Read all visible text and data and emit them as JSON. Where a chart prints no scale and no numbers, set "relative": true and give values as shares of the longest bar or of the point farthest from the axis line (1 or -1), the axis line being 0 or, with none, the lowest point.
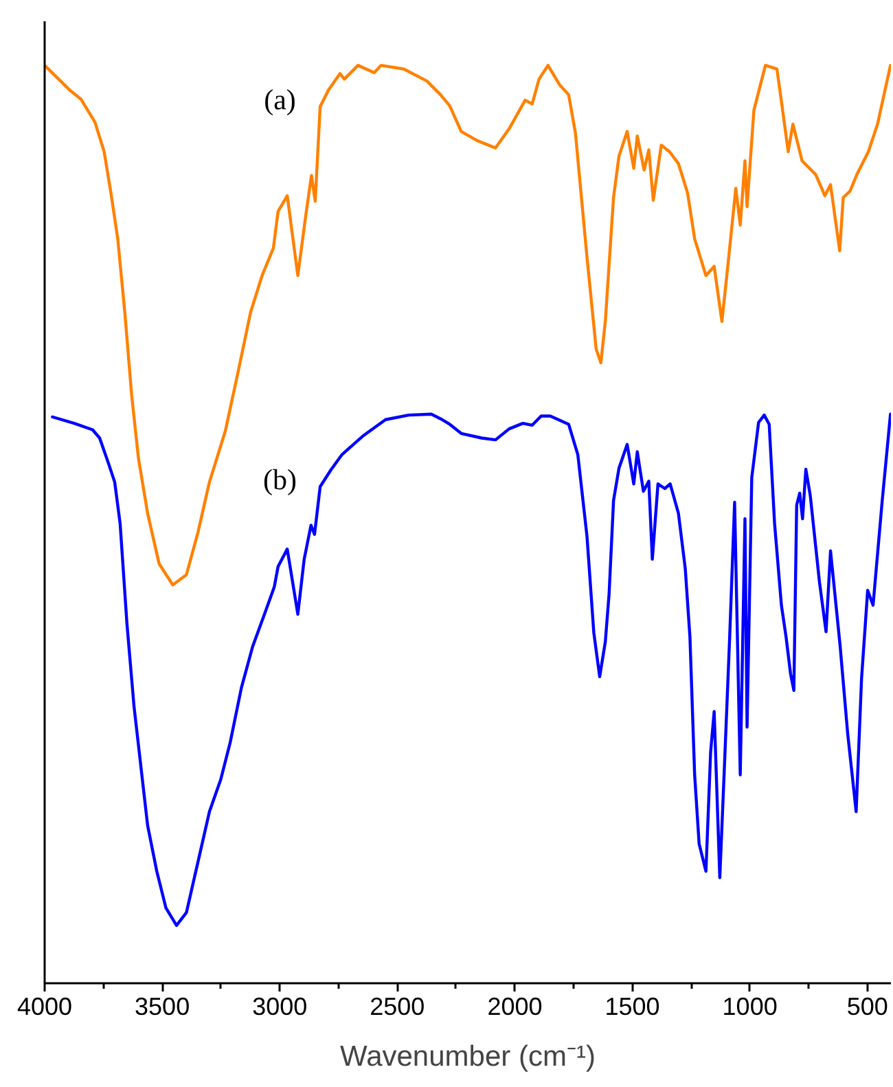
{
  "chart_data": {
    "type": "line",
    "xlabel": "Wavenumber (cm⁻¹)",
    "relative": true,
    "tick_labels": "x",
    "xlim": [
      4000,
      400
    ],
    "xticks": [
      4000,
      {
        "value": 3750,
        "label": null
      },
      3500,
      {
        "value": 3250,
        "label": null
      },
      3000,
      {
        "value": 2750,
        "label": null
      },
      2500,
      {
        "value": 2250,
        "label": null
      },
      2000,
      {
        "value": 1750,
        "label": null
      },
      1500,
      {
        "value": 1250,
        "label": null
      },
      1000,
      {
        "value": 750,
        "label": null
      },
      500
    ],
    "series": [
      {
        "name": "(a)",
        "color": "#ff8000",
        "x": [
          4000,
          3893,
          3845,
          3786,
          3747,
          3718,
          3689,
          3659,
          3630,
          3601,
          3562,
          3513,
          3455,
          3397,
          3348,
          3299,
          3231,
          3173,
          3124,
          3075,
          3027,
          3007,
          2968,
          2923,
          2890,
          2865,
          2849,
          2828,
          2793,
          2744,
          2725,
          2667,
          2598,
          2569,
          2472,
          2374,
          2316,
          2277,
          2228,
          2160,
          2082,
          2024,
          1956,
          1926,
          1897,
          1859,
          1810,
          1771,
          1742,
          1693,
          1654,
          1634,
          1615,
          1580,
          1557,
          1522,
          1494,
          1479,
          1450,
          1430,
          1411,
          1377,
          1342,
          1304,
          1265,
          1235,
          1187,
          1152,
          1119,
          1090,
          1060,
          1041,
          1021,
          1012,
          983,
          934,
          885,
          866,
          837,
          817,
          778,
          720,
          681,
          657,
          618,
          603,
          574,
          545,
          496,
          457,
          402
        ],
        "values": [
          1.0,
          0.973,
          0.963,
          0.938,
          0.906,
          0.861,
          0.811,
          0.731,
          0.641,
          0.572,
          0.512,
          0.457,
          0.434,
          0.445,
          0.491,
          0.546,
          0.602,
          0.671,
          0.731,
          0.771,
          0.801,
          0.841,
          0.858,
          0.771,
          0.835,
          0.88,
          0.852,
          0.955,
          0.973,
          0.991,
          0.985,
          1.0,
          0.992,
          1.0,
          0.996,
          0.983,
          0.968,
          0.956,
          0.928,
          0.918,
          0.91,
          0.931,
          0.962,
          0.958,
          0.985,
          1.0,
          0.979,
          0.968,
          0.926,
          0.791,
          0.691,
          0.676,
          0.721,
          0.856,
          0.901,
          0.928,
          0.888,
          0.923,
          0.886,
          0.908,
          0.853,
          0.913,
          0.906,
          0.893,
          0.861,
          0.811,
          0.771,
          0.781,
          0.721,
          0.791,
          0.866,
          0.826,
          0.896,
          0.846,
          0.951,
          1.0,
          0.996,
          0.961,
          0.906,
          0.936,
          0.896,
          0.881,
          0.858,
          0.87,
          0.798,
          0.856,
          0.863,
          0.881,
          0.906,
          0.936,
          1.0
        ]
      },
      {
        "name": "(b)",
        "color": "#0000ff",
        "x": [
          3967,
          3874,
          3796,
          3766,
          3728,
          3702,
          3679,
          3650,
          3620,
          3591,
          3562,
          3523,
          3484,
          3439,
          3397,
          3348,
          3299,
          3251,
          3211,
          3163,
          3115,
          3065,
          3023,
          3007,
          2968,
          2923,
          2896,
          2867,
          2852,
          2828,
          2783,
          2735,
          2647,
          2550,
          2452,
          2355,
          2316,
          2277,
          2228,
          2141,
          2082,
          2024,
          1966,
          1926,
          1888,
          1849,
          1771,
          1732,
          1693,
          1664,
          1639,
          1615,
          1599,
          1580,
          1557,
          1522,
          1494,
          1479,
          1453,
          1430,
          1415,
          1391,
          1362,
          1339,
          1304,
          1275,
          1255,
          1235,
          1216,
          1187,
          1167,
          1152,
          1128,
          1109,
          1086,
          1065,
          1041,
          1021,
          1012,
          992,
          963,
          939,
          918,
          895,
          866,
          846,
          827,
          813,
          801,
          788,
          776,
          762,
          743,
          704,
          676,
          657,
          616,
          584,
          548,
          525,
          499,
          476,
          437,
          402
        ],
        "values": [
          0.617,
          0.61,
          0.603,
          0.594,
          0.566,
          0.546,
          0.501,
          0.392,
          0.302,
          0.237,
          0.172,
          0.122,
          0.082,
          0.063,
          0.077,
          0.132,
          0.187,
          0.222,
          0.262,
          0.322,
          0.367,
          0.402,
          0.432,
          0.454,
          0.473,
          0.402,
          0.462,
          0.499,
          0.489,
          0.541,
          0.559,
          0.576,
          0.596,
          0.614,
          0.619,
          0.62,
          0.615,
          0.609,
          0.599,
          0.594,
          0.592,
          0.604,
          0.61,
          0.608,
          0.618,
          0.618,
          0.609,
          0.576,
          0.487,
          0.382,
          0.334,
          0.372,
          0.424,
          0.526,
          0.561,
          0.587,
          0.544,
          0.579,
          0.536,
          0.547,
          0.462,
          0.544,
          0.539,
          0.544,
          0.512,
          0.452,
          0.377,
          0.227,
          0.152,
          0.122,
          0.252,
          0.296,
          0.115,
          0.232,
          0.377,
          0.524,
          0.227,
          0.506,
          0.279,
          0.551,
          0.611,
          0.619,
          0.609,
          0.501,
          0.412,
          0.377,
          0.337,
          0.319,
          0.521,
          0.534,
          0.506,
          0.56,
          0.531,
          0.437,
          0.383,
          0.471,
          0.367,
          0.272,
          0.187,
          0.332,
          0.428,
          0.412,
          0.526,
          0.62
        ]
      }
    ]
  }
}
